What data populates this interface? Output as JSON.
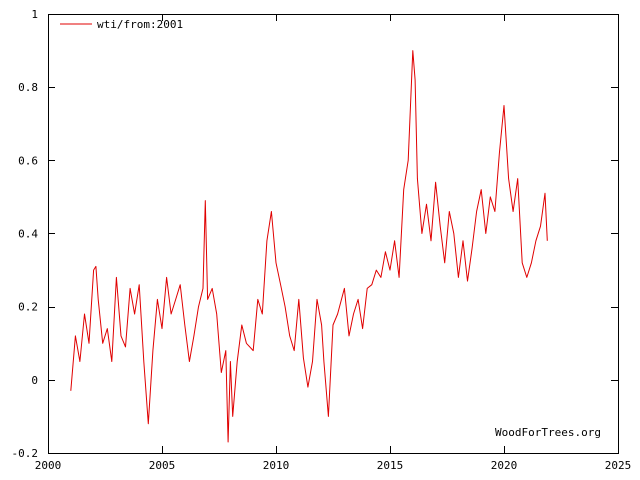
{
  "chart_data": {
    "type": "line",
    "legend_label": "wti/from:2001",
    "watermark": "WoodForTrees.org",
    "xlim": [
      2000,
      2025
    ],
    "ylim": [
      -0.2,
      1.0
    ],
    "x_ticks": [
      2000,
      2005,
      2010,
      2015,
      2020,
      2025
    ],
    "x_tick_labels": [
      "2000",
      "2005",
      "2010",
      "2015",
      "2020",
      "2025"
    ],
    "y_ticks": [
      -0.2,
      0,
      0.2,
      0.4,
      0.6,
      0.8,
      1.0
    ],
    "y_tick_labels": [
      "-0.2",
      "0",
      "0.2",
      "0.4",
      "0.6",
      "0.8",
      "1"
    ],
    "legend_position": "top-left",
    "grid": false,
    "line_color": "#e00000",
    "series": [
      {
        "name": "wti/from:2001",
        "x": [
          2001.0,
          2001.2,
          2001.4,
          2001.6,
          2001.8,
          2002.0,
          2002.1,
          2002.2,
          2002.4,
          2002.6,
          2002.8,
          2003.0,
          2003.2,
          2003.4,
          2003.6,
          2003.8,
          2004.0,
          2004.2,
          2004.4,
          2004.6,
          2004.8,
          2005.0,
          2005.2,
          2005.4,
          2005.6,
          2005.8,
          2006.0,
          2006.2,
          2006.4,
          2006.6,
          2006.8,
          2006.9,
          2007.0,
          2007.2,
          2007.4,
          2007.6,
          2007.8,
          2007.9,
          2008.0,
          2008.1,
          2008.3,
          2008.5,
          2008.7,
          2009.0,
          2009.2,
          2009.4,
          2009.6,
          2009.8,
          2010.0,
          2010.2,
          2010.4,
          2010.6,
          2010.8,
          2011.0,
          2011.2,
          2011.4,
          2011.6,
          2011.8,
          2012.0,
          2012.1,
          2012.3,
          2012.5,
          2012.7,
          2013.0,
          2013.2,
          2013.4,
          2013.6,
          2013.8,
          2014.0,
          2014.2,
          2014.4,
          2014.6,
          2014.8,
          2015.0,
          2015.2,
          2015.4,
          2015.6,
          2015.8,
          2016.0,
          2016.1,
          2016.2,
          2016.4,
          2016.6,
          2016.8,
          2017.0,
          2017.2,
          2017.4,
          2017.6,
          2017.8,
          2018.0,
          2018.2,
          2018.4,
          2018.6,
          2018.8,
          2019.0,
          2019.2,
          2019.4,
          2019.6,
          2019.8,
          2020.0,
          2020.2,
          2020.4,
          2020.6,
          2020.8,
          2021.0,
          2021.2,
          2021.4,
          2021.6,
          2021.8,
          2021.9
        ],
        "values": [
          -0.03,
          0.12,
          0.05,
          0.18,
          0.1,
          0.3,
          0.31,
          0.22,
          0.1,
          0.14,
          0.05,
          0.28,
          0.12,
          0.09,
          0.25,
          0.18,
          0.26,
          0.05,
          -0.12,
          0.08,
          0.22,
          0.14,
          0.28,
          0.18,
          0.22,
          0.26,
          0.15,
          0.05,
          0.12,
          0.2,
          0.25,
          0.49,
          0.22,
          0.25,
          0.18,
          0.02,
          0.08,
          -0.17,
          0.05,
          -0.1,
          0.05,
          0.15,
          0.1,
          0.08,
          0.22,
          0.18,
          0.38,
          0.46,
          0.32,
          0.26,
          0.2,
          0.12,
          0.08,
          0.22,
          0.06,
          -0.02,
          0.05,
          0.22,
          0.15,
          0.05,
          -0.1,
          0.15,
          0.18,
          0.25,
          0.12,
          0.18,
          0.22,
          0.14,
          0.25,
          0.26,
          0.3,
          0.28,
          0.35,
          0.3,
          0.38,
          0.28,
          0.52,
          0.6,
          0.9,
          0.82,
          0.55,
          0.4,
          0.48,
          0.38,
          0.54,
          0.42,
          0.32,
          0.46,
          0.4,
          0.28,
          0.38,
          0.27,
          0.36,
          0.46,
          0.52,
          0.4,
          0.5,
          0.46,
          0.62,
          0.75,
          0.55,
          0.46,
          0.55,
          0.32,
          0.28,
          0.32,
          0.38,
          0.42,
          0.51,
          0.38
        ]
      }
    ]
  }
}
